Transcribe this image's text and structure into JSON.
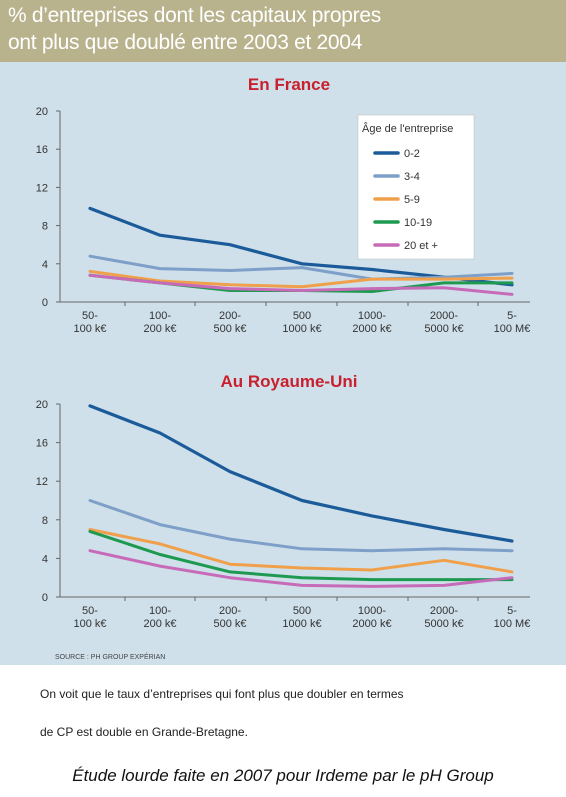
{
  "header": {
    "line1": "% d’entreprises dont les capitaux propres",
    "line2": "ont plus que doublé entre 2003 et 2004"
  },
  "legend": {
    "title": "Âge de l'entreprise"
  },
  "source": "SOURCE : PH GROUP EXPÉRIAN",
  "note": {
    "line1": "On voit que le taux d’entreprises qui font plus que doubler en termes",
    "line2": "de CP est double en Grande-Bretagne."
  },
  "caption": "Étude lourde faite en 2007 pour Irdeme par le pH Group",
  "colors": {
    "0-2": "#1c5b9a",
    "3-4": "#7d9fc8",
    "5-9": "#f0a04b",
    "10-19": "#1e9a50",
    "20 et +": "#c76bb9"
  },
  "chart_data": [
    {
      "type": "line",
      "title": "En France",
      "categories": [
        "50-\n100 k€",
        "100-\n200 k€",
        "200-\n500 k€",
        "500\n1000 k€",
        "1000-\n2000 k€",
        "2000-\n5000 k€",
        "5-\n100 M€"
      ],
      "ylim": [
        0,
        20
      ],
      "yticks": [
        0,
        4,
        8,
        12,
        16,
        20
      ],
      "grid": false,
      "legend": "top-right",
      "series": [
        {
          "name": "0-2",
          "values": [
            9.8,
            7.0,
            6.0,
            4.0,
            3.4,
            2.6,
            1.8
          ]
        },
        {
          "name": "3-4",
          "values": [
            4.8,
            3.5,
            3.3,
            3.6,
            2.4,
            2.6,
            3.0
          ]
        },
        {
          "name": "5-9",
          "values": [
            3.2,
            2.2,
            1.8,
            1.6,
            2.4,
            2.4,
            2.5
          ]
        },
        {
          "name": "10-19",
          "values": [
            2.8,
            2.0,
            1.2,
            1.2,
            1.1,
            2.0,
            2.0
          ]
        },
        {
          "name": "20 et +",
          "values": [
            2.8,
            2.0,
            1.4,
            1.2,
            1.4,
            1.5,
            0.8
          ]
        }
      ]
    },
    {
      "type": "line",
      "title": "Au Royaume-Uni",
      "categories": [
        "50-\n100 k€",
        "100-\n200 k€",
        "200-\n500 k€",
        "500\n1000 k€",
        "1000-\n2000 k€",
        "2000-\n5000 k€",
        "5-\n100 M€"
      ],
      "ylim": [
        0,
        20
      ],
      "yticks": [
        0,
        4,
        8,
        12,
        16,
        20
      ],
      "grid": false,
      "series": [
        {
          "name": "0-2",
          "values": [
            19.8,
            17.0,
            13.0,
            10.0,
            8.4,
            7.0,
            5.8
          ]
        },
        {
          "name": "3-4",
          "values": [
            10.0,
            7.5,
            6.0,
            5.0,
            4.8,
            5.0,
            4.8
          ]
        },
        {
          "name": "5-9",
          "values": [
            7.0,
            5.5,
            3.4,
            3.0,
            2.8,
            3.8,
            2.6
          ]
        },
        {
          "name": "10-19",
          "values": [
            6.8,
            4.4,
            2.6,
            2.0,
            1.8,
            1.8,
            1.8
          ]
        },
        {
          "name": "20 et +",
          "values": [
            4.8,
            3.2,
            2.0,
            1.2,
            1.1,
            1.2,
            2.0
          ]
        }
      ]
    }
  ]
}
